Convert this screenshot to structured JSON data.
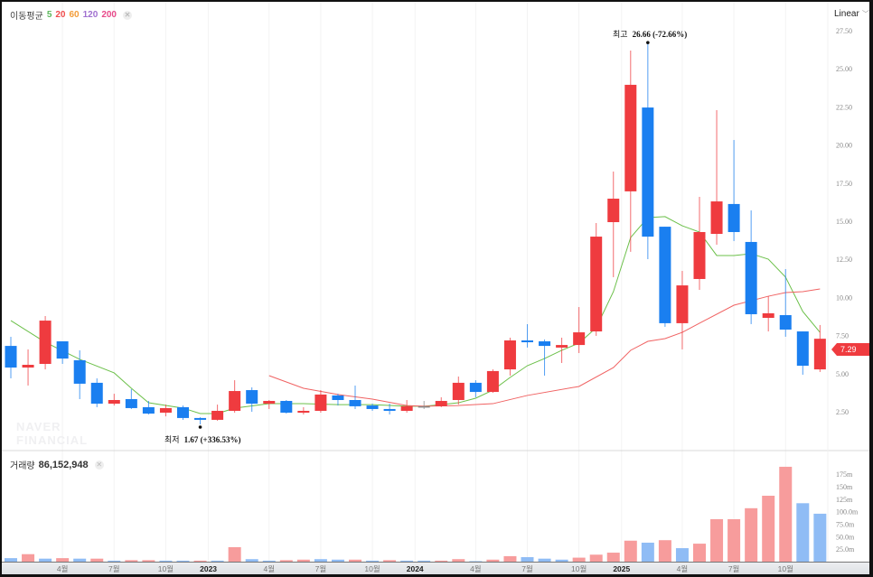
{
  "legend": {
    "label": "이동평균",
    "periods": [
      "5",
      "20",
      "60",
      "120",
      "200"
    ],
    "period_colors": [
      "#5cb85c",
      "#f04d4d",
      "#f39c38",
      "#a070d0",
      "#e84a8a"
    ],
    "close_icon": "close-icon"
  },
  "scale_button": {
    "label": "Linear",
    "icon": "chevron-down-icon"
  },
  "volume_legend": {
    "label": "거래량",
    "value": "86,152,948",
    "close_icon": "close-icon"
  },
  "watermark": [
    "NAVER",
    "FINANCIAL"
  ],
  "annotations": {
    "high": {
      "label": "최고",
      "value": "26.66 (-72.66%)"
    },
    "low": {
      "label": "최저",
      "value": "1.67 (+336.53%)"
    }
  },
  "current_price": "7.29",
  "colors": {
    "up": "#ef3b3f",
    "down": "#1a7ff0",
    "flat": "#888888",
    "vol_up": "#f79c9c",
    "vol_down": "#8fbcf5",
    "ma5": "#6cc04a",
    "ma20": "#f06262"
  },
  "chart_data": {
    "type": "candlestick",
    "interval": "monthly",
    "price_axis": {
      "ticks": [
        "2.50",
        "5.00",
        "7.50",
        "10.00",
        "12.50",
        "15.00",
        "17.50",
        "20.00",
        "22.50",
        "25.00",
        "27.50"
      ],
      "range": [
        2.5,
        27.5
      ],
      "scale": "Linear"
    },
    "volume_axis": {
      "ticks": [
        "25.0m",
        "50.0m",
        "75.0m",
        "100.0m",
        "125m",
        "150m",
        "175m"
      ],
      "unit": "million"
    },
    "x_labels": [
      {
        "index": 3,
        "label": "4월"
      },
      {
        "index": 6,
        "label": "7월"
      },
      {
        "index": 9,
        "label": "10월"
      },
      {
        "index": 12,
        "label": "2023",
        "year": true
      },
      {
        "index": 15,
        "label": "4월"
      },
      {
        "index": 18,
        "label": "7월"
      },
      {
        "index": 21,
        "label": "10월"
      },
      {
        "index": 24,
        "label": "2024",
        "year": true
      },
      {
        "index": 27,
        "label": "4월"
      },
      {
        "index": 30,
        "label": "7월"
      },
      {
        "index": 33,
        "label": "10월"
      },
      {
        "index": 36,
        "label": "2025",
        "year": true
      },
      {
        "index": 39,
        "label": "4월"
      },
      {
        "index": 42,
        "label": "7월"
      },
      {
        "index": 45,
        "label": "10월"
      }
    ],
    "ohlc": [
      [
        6.82,
        7.42,
        4.69,
        5.4
      ],
      [
        5.4,
        6.59,
        4.22,
        5.58
      ],
      [
        5.64,
        8.78,
        5.28,
        8.48
      ],
      [
        7.12,
        7.12,
        5.64,
        5.99
      ],
      [
        5.88,
        6.53,
        3.33,
        4.34
      ],
      [
        4.4,
        4.69,
        2.8,
        3.03
      ],
      [
        3.03,
        3.68,
        2.91,
        3.27
      ],
      [
        3.33,
        3.98,
        2.68,
        2.74
      ],
      [
        2.8,
        3.21,
        2.32,
        2.38
      ],
      [
        2.44,
        2.97,
        2.2,
        2.74
      ],
      [
        2.8,
        2.91,
        1.97,
        2.09
      ],
      [
        2.09,
        2.14,
        1.67,
        1.97
      ],
      [
        1.97,
        2.97,
        1.91,
        2.56
      ],
      [
        2.56,
        4.57,
        2.44,
        3.86
      ],
      [
        3.92,
        4.1,
        2.5,
        3.03
      ],
      [
        3.03,
        3.27,
        2.68,
        3.21
      ],
      [
        3.21,
        3.27,
        2.38,
        2.44
      ],
      [
        2.44,
        2.8,
        2.32,
        2.56
      ],
      [
        2.56,
        3.92,
        2.44,
        3.63
      ],
      [
        3.57,
        3.68,
        2.91,
        3.27
      ],
      [
        3.27,
        4.22,
        2.68,
        2.86
      ],
      [
        2.91,
        3.03,
        2.56,
        2.68
      ],
      [
        2.68,
        3.03,
        2.32,
        2.56
      ],
      [
        2.56,
        3.27,
        2.44,
        2.86
      ],
      [
        2.86,
        3.21,
        2.68,
        2.86
      ],
      [
        2.86,
        3.45,
        2.8,
        3.21
      ],
      [
        3.27,
        4.81,
        2.97,
        4.4
      ],
      [
        4.4,
        4.57,
        3.45,
        3.8
      ],
      [
        3.8,
        5.28,
        3.74,
        5.17
      ],
      [
        5.28,
        7.36,
        4.87,
        7.18
      ],
      [
        7.18,
        8.25,
        6.71,
        7.06
      ],
      [
        7.12,
        7.24,
        4.87,
        6.82
      ],
      [
        6.71,
        7.36,
        5.7,
        6.88
      ],
      [
        6.88,
        9.37,
        6.35,
        7.71
      ],
      [
        7.77,
        14.88,
        7.48,
        13.99
      ],
      [
        14.94,
        18.26,
        11.33,
        16.48
      ],
      [
        16.96,
        26.2,
        12.99,
        23.95
      ],
      [
        22.46,
        26.66,
        12.51,
        13.99
      ],
      [
        14.64,
        14.64,
        8.07,
        8.31
      ],
      [
        8.31,
        11.74,
        6.59,
        10.79
      ],
      [
        11.21,
        16.6,
        10.5,
        14.29
      ],
      [
        14.17,
        22.29,
        13.46,
        16.3
      ],
      [
        16.13,
        20.33,
        13.7,
        14.29
      ],
      [
        13.64,
        15.71,
        8.25,
        8.9
      ],
      [
        8.66,
        10.08,
        7.77,
        8.96
      ],
      [
        8.84,
        11.86,
        7.42,
        7.89
      ],
      [
        7.77,
        7.77,
        4.93,
        5.52
      ],
      [
        5.28,
        8.19,
        5.11,
        7.29
      ]
    ],
    "volume_m": [
      7,
      15,
      6,
      7,
      6,
      6,
      2,
      3,
      3,
      2,
      2,
      2,
      2,
      29,
      5,
      2,
      3,
      4,
      5,
      4,
      4,
      2,
      3,
      2,
      2,
      2,
      5,
      1,
      4,
      11,
      9,
      6,
      4,
      8,
      14,
      18,
      42,
      38,
      43,
      27,
      36,
      85,
      85,
      107,
      132,
      190,
      117,
      96
    ],
    "volume_up": [
      0,
      1,
      0,
      1,
      0,
      1,
      0,
      1,
      1,
      0,
      0,
      1,
      0,
      1,
      0,
      0,
      1,
      1,
      0,
      0,
      1,
      0,
      1,
      0,
      0,
      1,
      1,
      0,
      1,
      1,
      0,
      0,
      0,
      1,
      1,
      1,
      1,
      0,
      1,
      0,
      1,
      1,
      1,
      1,
      1,
      1,
      0,
      0
    ],
    "ma5": [
      [
        0,
        8.48
      ],
      [
        2,
        7.06
      ],
      [
        4,
        5.94
      ],
      [
        6,
        5.05
      ],
      [
        7,
        4.04
      ],
      [
        8,
        3.09
      ],
      [
        10,
        2.74
      ],
      [
        11,
        2.38
      ],
      [
        12,
        2.38
      ],
      [
        13,
        2.74
      ],
      [
        15,
        3.03
      ],
      [
        17,
        3.03
      ],
      [
        19,
        2.97
      ],
      [
        21,
        2.97
      ],
      [
        23,
        2.86
      ],
      [
        24,
        2.86
      ],
      [
        25,
        2.97
      ],
      [
        26,
        3.09
      ],
      [
        27,
        3.39
      ],
      [
        28,
        3.92
      ],
      [
        29,
        4.75
      ],
      [
        30,
        5.52
      ],
      [
        31,
        5.99
      ],
      [
        32,
        6.53
      ],
      [
        33,
        7.0
      ],
      [
        34,
        8.01
      ],
      [
        35,
        10.38
      ],
      [
        36,
        13.93
      ],
      [
        37,
        15.24
      ],
      [
        38,
        15.3
      ],
      [
        39,
        14.7
      ],
      [
        40,
        14.29
      ],
      [
        41,
        12.75
      ],
      [
        42,
        12.75
      ],
      [
        43,
        12.87
      ],
      [
        44,
        12.51
      ],
      [
        45,
        11.33
      ],
      [
        46,
        9.08
      ],
      [
        47,
        7.71
      ]
    ],
    "ma20": [
      [
        15,
        4.87
      ],
      [
        17,
        4.04
      ],
      [
        19,
        3.63
      ],
      [
        21,
        3.33
      ],
      [
        23,
        2.91
      ],
      [
        24,
        2.86
      ],
      [
        26,
        2.91
      ],
      [
        28,
        3.03
      ],
      [
        30,
        3.57
      ],
      [
        33,
        4.16
      ],
      [
        35,
        5.4
      ],
      [
        36,
        6.53
      ],
      [
        37,
        7.12
      ],
      [
        38,
        7.3
      ],
      [
        39,
        7.71
      ],
      [
        40,
        8.31
      ],
      [
        42,
        9.49
      ],
      [
        44,
        10.08
      ],
      [
        45,
        10.32
      ],
      [
        46,
        10.38
      ],
      [
        47,
        10.56
      ]
    ],
    "high_marker": {
      "index": 37,
      "value": 26.66
    },
    "low_marker": {
      "index": 11,
      "value": 1.67
    }
  }
}
